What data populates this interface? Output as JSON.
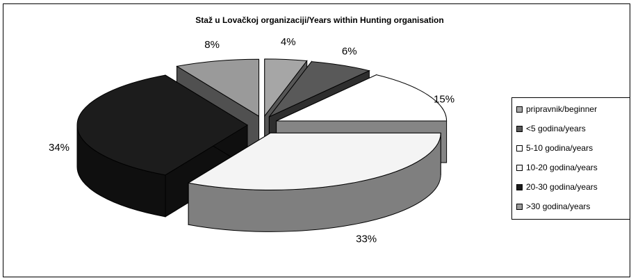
{
  "chart_data": {
    "type": "pie3d",
    "title": "Staž u Lovačkoj organizaciji/Years within Hunting organisation",
    "categories": [
      "pripravnik/beginner",
      "<5 godina/years",
      "5-10 godina/years",
      "10-20 godina/years",
      "20-30 godina/years",
      ">30 godina/years"
    ],
    "values": [
      4,
      6,
      15,
      33,
      34,
      8
    ],
    "value_labels": [
      "4%",
      "6%",
      "15%",
      "33%",
      "34%",
      "8%"
    ],
    "colors": [
      "#a6a6a6",
      "#595959",
      "#ffffff",
      "#f4f4f4",
      "#1c1c1c",
      "#9a9a9a"
    ],
    "legend": "right"
  }
}
